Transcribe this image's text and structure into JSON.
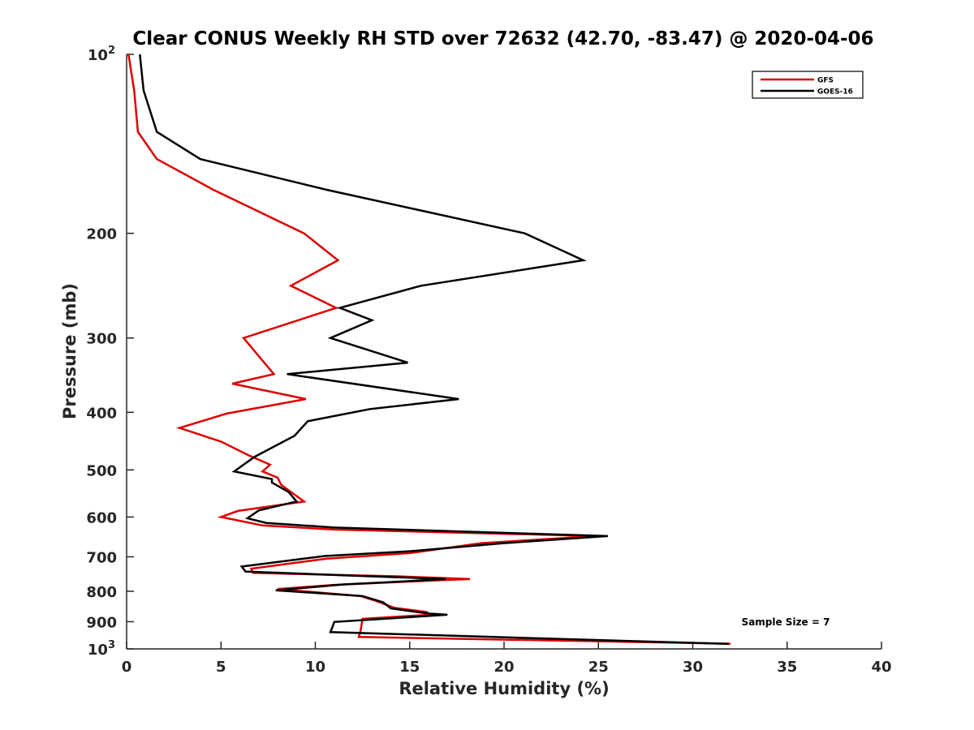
{
  "chart_data": {
    "type": "line",
    "title": "Clear CONUS Weekly RH STD over 72632 (42.70, -83.47) @ 2020-04-06",
    "xlabel": "Relative Humidity (%)",
    "ylabel": "Pressure (mb)",
    "xlim": [
      0,
      40
    ],
    "ylim": [
      100,
      1000
    ],
    "y_scale": "log",
    "y_reversed": true,
    "x_ticks": [
      0,
      5,
      10,
      15,
      20,
      25,
      30,
      35,
      40
    ],
    "y_ticks": [
      {
        "value": 100,
        "label": "10",
        "sup": "2"
      },
      {
        "value": 200,
        "label": "200"
      },
      {
        "value": 300,
        "label": "300"
      },
      {
        "value": 400,
        "label": "400"
      },
      {
        "value": 500,
        "label": "500"
      },
      {
        "value": 600,
        "label": "600"
      },
      {
        "value": 700,
        "label": "700"
      },
      {
        "value": 800,
        "label": "800"
      },
      {
        "value": 900,
        "label": "900"
      },
      {
        "value": 1000,
        "label": "10",
        "sup": "3"
      }
    ],
    "legend_position": "top-right",
    "annotation": "Sample Size = 7",
    "series": [
      {
        "name": "GFS",
        "color": "#dd0000",
        "points": [
          [
            0.1,
            100
          ],
          [
            0.4,
            115
          ],
          [
            0.6,
            135
          ],
          [
            1.6,
            150
          ],
          [
            4.6,
            169
          ],
          [
            9.4,
            200
          ],
          [
            11.2,
            222
          ],
          [
            8.7,
            245
          ],
          [
            11.1,
            267
          ],
          [
            6.2,
            300
          ],
          [
            7.8,
            345
          ],
          [
            5.6,
            358
          ],
          [
            9.5,
            380
          ],
          [
            5.3,
            402
          ],
          [
            2.8,
            425
          ],
          [
            5.0,
            448
          ],
          [
            6.5,
            473
          ],
          [
            7.6,
            490
          ],
          [
            7.2,
            503
          ],
          [
            8.0,
            515
          ],
          [
            8.2,
            530
          ],
          [
            9.4,
            565
          ],
          [
            5.9,
            586
          ],
          [
            5.0,
            600
          ],
          [
            7.2,
            620
          ],
          [
            11.0,
            630
          ],
          [
            24.9,
            646
          ],
          [
            18.8,
            664
          ],
          [
            15.0,
            690
          ],
          [
            10.6,
            705
          ],
          [
            6.6,
            733
          ],
          [
            6.7,
            745
          ],
          [
            14.3,
            755
          ],
          [
            18.2,
            763
          ],
          [
            16.8,
            766
          ],
          [
            10.9,
            781
          ],
          [
            8.0,
            793
          ],
          [
            12.4,
            815
          ],
          [
            13.2,
            830
          ],
          [
            14.2,
            853
          ],
          [
            15.9,
            867
          ],
          [
            16.1,
            876
          ],
          [
            12.5,
            890
          ],
          [
            12.4,
            932
          ],
          [
            12.3,
            955
          ],
          [
            32.0,
            980
          ]
        ]
      },
      {
        "name": "GOES-16",
        "color": "#000000",
        "points": [
          [
            0.7,
            100
          ],
          [
            0.9,
            115
          ],
          [
            1.6,
            135
          ],
          [
            3.9,
            150
          ],
          [
            10.6,
            169
          ],
          [
            21.1,
            200
          ],
          [
            24.2,
            222
          ],
          [
            15.6,
            245
          ],
          [
            11.3,
            267
          ],
          [
            13.0,
            280
          ],
          [
            10.8,
            300
          ],
          [
            14.9,
            330
          ],
          [
            8.5,
            345
          ],
          [
            17.6,
            380
          ],
          [
            12.9,
            395
          ],
          [
            9.6,
            414
          ],
          [
            8.9,
            438
          ],
          [
            6.8,
            475
          ],
          [
            6.2,
            490
          ],
          [
            5.7,
            503
          ],
          [
            7.7,
            518
          ],
          [
            7.7,
            525
          ],
          [
            8.6,
            545
          ],
          [
            9.0,
            565
          ],
          [
            7.0,
            585
          ],
          [
            6.4,
            603
          ],
          [
            7.4,
            614
          ],
          [
            11.0,
            625
          ],
          [
            25.5,
            646
          ],
          [
            20.0,
            664
          ],
          [
            15.0,
            685
          ],
          [
            10.5,
            698
          ],
          [
            6.1,
            727
          ],
          [
            6.3,
            741
          ],
          [
            12.0,
            753
          ],
          [
            16.9,
            763
          ],
          [
            14.0,
            772
          ],
          [
            11.5,
            779
          ],
          [
            7.9,
            797
          ],
          [
            12.5,
            815
          ],
          [
            13.6,
            835
          ],
          [
            14.0,
            855
          ],
          [
            16.0,
            872
          ],
          [
            17.0,
            876
          ],
          [
            11.0,
            901
          ],
          [
            10.9,
            920
          ],
          [
            10.8,
            937
          ],
          [
            31.9,
            981
          ]
        ]
      }
    ]
  }
}
